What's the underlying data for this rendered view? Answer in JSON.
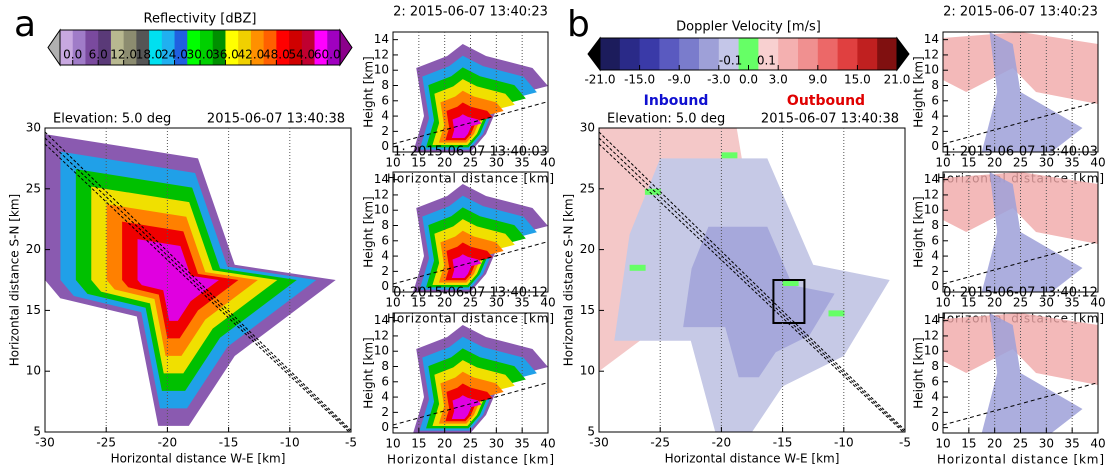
{
  "chart_data": [
    {
      "type": "image",
      "panel_label": "a",
      "title_left": "Elevation: 5.0 deg",
      "title_right": "2015-06-07 13:40:38",
      "xlabel": "Horizontal distance W-E [km]",
      "ylabel": "Horizontal distance S-N [km]",
      "xlim": [
        -30,
        -5
      ],
      "ylim": [
        5,
        30
      ],
      "xticks": [
        -30,
        -25,
        -20,
        -15,
        -10,
        -5
      ],
      "yticks": [
        5,
        10,
        15,
        20,
        25,
        30
      ],
      "grid": "x"
    },
    {
      "type": "image",
      "title": "2: 2015-06-07 13:40:23",
      "xlabel": "Horizontal distance [km]",
      "ylabel": "Height [km]",
      "xlim": [
        10,
        40
      ],
      "ylim": [
        -0.7,
        15
      ],
      "xticks": [
        10,
        15,
        20,
        25,
        30,
        35,
        40
      ],
      "yticks": [
        0,
        2,
        4,
        6,
        8,
        10,
        12,
        14
      ],
      "grid": "x"
    },
    {
      "type": "image",
      "title": "1: 2015-06-07 13:40:03",
      "xlabel": "Horizontal distance [km]",
      "ylabel": "Height [km]",
      "xlim": [
        10,
        40
      ],
      "ylim": [
        -0.7,
        15
      ],
      "xticks": [
        10,
        15,
        20,
        25,
        30,
        35,
        40
      ],
      "yticks": [
        0,
        2,
        4,
        6,
        8,
        10,
        12,
        14
      ],
      "grid": "x"
    },
    {
      "type": "image",
      "title": "0: 2015-06-07 13:40:12",
      "xlabel": "Horizontal distance [km]",
      "ylabel": "Height [km]",
      "xlim": [
        10,
        40
      ],
      "ylim": [
        -0.7,
        15
      ],
      "xticks": [
        10,
        15,
        20,
        25,
        30,
        35,
        40
      ],
      "yticks": [
        0,
        2,
        4,
        6,
        8,
        10,
        12,
        14
      ],
      "grid": "x"
    },
    {
      "type": "colorbar",
      "title": "Reflectivity [dBZ]",
      "bounds": [
        -3,
        0,
        3,
        6,
        9,
        12,
        15,
        18,
        21,
        24,
        27,
        30,
        33,
        36,
        39,
        42,
        45,
        48,
        51,
        54,
        57,
        60,
        63
      ],
      "colors": [
        "#c8a8e0",
        "#a07cc8",
        "#7a4a9e",
        "#5a3a78",
        "#b8b890",
        "#8c8c70",
        "#555555",
        "#00e0f0",
        "#20b0f0",
        "#2060e0",
        "#00ff00",
        "#00d000",
        "#009000",
        "#ffff00",
        "#f0d000",
        "#ff9000",
        "#ff6000",
        "#ff0000",
        "#d00000",
        "#c00030",
        "#ff00ff",
        "#a000c0"
      ],
      "extend_colors": [
        "#b0b0b0",
        "#8b008b"
      ],
      "ticks": [
        {
          "value": 0,
          "label": "0.0"
        },
        {
          "value": 6,
          "label": "6.0"
        },
        {
          "value": 12,
          "label": "12.0"
        },
        {
          "value": 18,
          "label": "18.0"
        },
        {
          "value": 24,
          "label": "24.0"
        },
        {
          "value": 30,
          "label": "30.0"
        },
        {
          "value": 36,
          "label": "36.0"
        },
        {
          "value": 42,
          "label": "42.0"
        },
        {
          "value": 48,
          "label": "48.0"
        },
        {
          "value": 54,
          "label": "54.0"
        },
        {
          "value": 60,
          "label": "60.0"
        }
      ]
    },
    {
      "type": "image",
      "panel_label": "b",
      "title_left": "Elevation: 5.0 deg",
      "title_right": "2015-06-07 13:40:38",
      "xlabel": "Horizontal distance W-E [km]",
      "ylabel": "Horizontal distance S-N [km]",
      "xlim": [
        -30,
        -5
      ],
      "ylim": [
        5,
        30
      ],
      "xticks": [
        -30,
        -25,
        -20,
        -15,
        -10,
        -5
      ],
      "yticks": [
        5,
        10,
        15,
        20,
        25,
        30
      ],
      "grid": "x"
    },
    {
      "type": "image",
      "title": "2: 2015-06-07 13:40:23",
      "xlabel": "Horizontal distance [km]",
      "ylabel": "Height [km]",
      "xlim": [
        10,
        40
      ],
      "ylim": [
        -0.7,
        15
      ],
      "xticks": [
        10,
        15,
        20,
        25,
        30,
        35,
        40
      ],
      "yticks": [
        0,
        2,
        4,
        6,
        8,
        10,
        12,
        14
      ],
      "grid": "x"
    },
    {
      "type": "image",
      "title": "1: 2015-06-07 13:40:03",
      "xlabel": "Horizontal distance [km]",
      "ylabel": "Height [km]",
      "xlim": [
        10,
        40
      ],
      "ylim": [
        -0.7,
        15
      ],
      "xticks": [
        10,
        15,
        20,
        25,
        30,
        35,
        40
      ],
      "yticks": [
        0,
        2,
        4,
        6,
        8,
        10,
        12,
        14
      ],
      "grid": "x"
    },
    {
      "type": "image",
      "title": "0: 2015-06-07 13:40:12",
      "xlabel": "Horizontal distance [km]",
      "ylabel": "Height [km]",
      "xlim": [
        10,
        40
      ],
      "ylim": [
        -0.7,
        15
      ],
      "xticks": [
        10,
        15,
        20,
        25,
        30,
        35,
        40
      ],
      "yticks": [
        0,
        2,
        4,
        6,
        8,
        10,
        12,
        14
      ],
      "grid": "x"
    },
    {
      "type": "colorbar",
      "title": "Doppler Velocity [m/s]",
      "bounds": [
        -21,
        -18,
        -15,
        -12,
        -9,
        -6,
        -3,
        -0.1,
        0.1,
        3,
        6,
        9,
        12,
        15,
        18,
        21
      ],
      "colors": [
        "#1c1c5c",
        "#2a2a88",
        "#3a3aa8",
        "#5a5ac0",
        "#7a7ccc",
        "#9ea0d8",
        "#c4c6e8",
        "#66ff66",
        "#f8d0d0",
        "#f4b0b0",
        "#f09090",
        "#ec6868",
        "#e04040",
        "#c02020",
        "#801010"
      ],
      "extend_colors": [
        "#000000",
        "#000000"
      ],
      "ticks": [
        {
          "value": -21,
          "label": "-21.0"
        },
        {
          "value": -15,
          "label": "-15.0"
        },
        {
          "value": -9,
          "label": "-9.0"
        },
        {
          "value": -3,
          "label": "-3.0"
        },
        {
          "value": 0,
          "label": "0.0"
        },
        {
          "value": 3,
          "label": "3.0"
        },
        {
          "value": 9,
          "label": "9.0"
        },
        {
          "value": 15,
          "label": "15.0"
        },
        {
          "value": 21,
          "label": "21.0"
        }
      ],
      "inner_ticks": [
        -0.1,
        0.1
      ],
      "annotations": [
        {
          "text": "Inbound",
          "color": "#1010d0"
        },
        {
          "text": "Outbound",
          "color": "#e00000"
        }
      ]
    }
  ]
}
